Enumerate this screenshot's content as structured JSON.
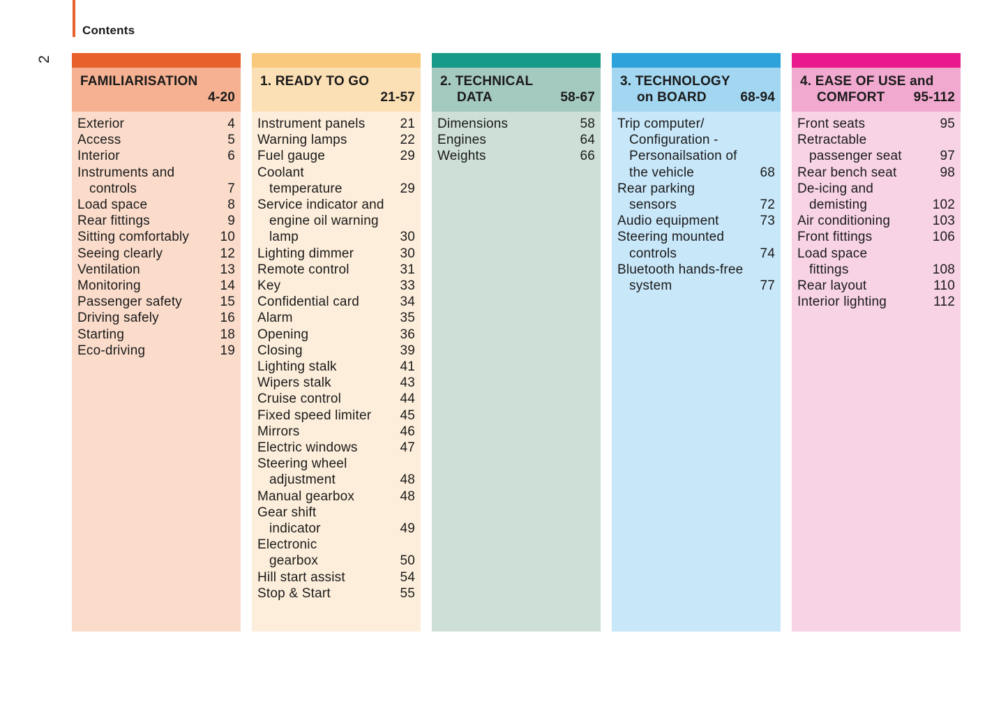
{
  "page_label": "2",
  "contents_title": "Contents",
  "accent_color": "#e8612c",
  "text_color": "#1a1a1a",
  "sections": [
    {
      "title_line1": "FAMILIARISATION",
      "title_line2": "",
      "range": "4-20",
      "colors": {
        "bar": "#e8612c",
        "head": "#f5b191",
        "body": "#fbdccb"
      },
      "entries": [
        {
          "lines": [
            "Exterior"
          ],
          "page": "4"
        },
        {
          "lines": [
            "Access"
          ],
          "page": "5"
        },
        {
          "lines": [
            "Interior"
          ],
          "page": "6"
        },
        {
          "lines": [
            "Instruments and",
            "controls"
          ],
          "page": "7"
        },
        {
          "lines": [
            "Load space"
          ],
          "page": "8"
        },
        {
          "lines": [
            "Rear fittings"
          ],
          "page": "9"
        },
        {
          "lines": [
            "Sitting comfortably"
          ],
          "page": "10"
        },
        {
          "lines": [
            "Seeing clearly"
          ],
          "page": "12"
        },
        {
          "lines": [
            "Ventilation"
          ],
          "page": "13"
        },
        {
          "lines": [
            "Monitoring"
          ],
          "page": "14"
        },
        {
          "lines": [
            "Passenger safety"
          ],
          "page": "15"
        },
        {
          "lines": [
            "Driving safely"
          ],
          "page": "16"
        },
        {
          "lines": [
            "Starting"
          ],
          "page": "18"
        },
        {
          "lines": [
            "Eco-driving"
          ],
          "page": "19"
        }
      ]
    },
    {
      "title_line1": "1. READY TO GO",
      "title_line2": "",
      "range": "21-57",
      "colors": {
        "bar": "#f9c97e",
        "head": "#fce0b5",
        "body": "#fdeedb"
      },
      "entries": [
        {
          "lines": [
            "Instrument panels"
          ],
          "page": "21"
        },
        {
          "lines": [
            "Warning lamps"
          ],
          "page": "22"
        },
        {
          "lines": [
            "Fuel gauge"
          ],
          "page": "29"
        },
        {
          "lines": [
            "Coolant",
            "temperature"
          ],
          "page": "29"
        },
        {
          "lines": [
            "Service indicator and",
            "engine oil warning",
            "lamp"
          ],
          "page": "30"
        },
        {
          "lines": [
            "Lighting dimmer"
          ],
          "page": "30"
        },
        {
          "lines": [
            "Remote control"
          ],
          "page": "31"
        },
        {
          "lines": [
            "Key"
          ],
          "page": "33"
        },
        {
          "lines": [
            "Confidential card"
          ],
          "page": "34"
        },
        {
          "lines": [
            "Alarm"
          ],
          "page": "35"
        },
        {
          "lines": [
            "Opening"
          ],
          "page": "36"
        },
        {
          "lines": [
            "Closing"
          ],
          "page": "39"
        },
        {
          "lines": [
            "Lighting stalk"
          ],
          "page": "41"
        },
        {
          "lines": [
            "Wipers stalk"
          ],
          "page": "43"
        },
        {
          "lines": [
            "Cruise control"
          ],
          "page": "44"
        },
        {
          "lines": [
            "Fixed speed limiter"
          ],
          "page": "45"
        },
        {
          "lines": [
            "Mirrors"
          ],
          "page": "46"
        },
        {
          "lines": [
            "Electric windows"
          ],
          "page": "47"
        },
        {
          "lines": [
            "Steering wheel",
            "adjustment"
          ],
          "page": "48"
        },
        {
          "lines": [
            "Manual gearbox"
          ],
          "page": "48"
        },
        {
          "lines": [
            "Gear shift",
            "indicator"
          ],
          "page": "49"
        },
        {
          "lines": [
            "Electronic",
            "gearbox"
          ],
          "page": "50"
        },
        {
          "lines": [
            "Hill start assist"
          ],
          "page": "54"
        },
        {
          "lines": [
            "Stop & Start"
          ],
          "page": "55"
        }
      ]
    },
    {
      "title_line1": "2. TECHNICAL",
      "title_line2": "DATA",
      "range": "58-67",
      "colors": {
        "bar": "#189a89",
        "head": "#a4c9bf",
        "body": "#cedfd7"
      },
      "entries": [
        {
          "lines": [
            "Dimensions"
          ],
          "page": "58"
        },
        {
          "lines": [
            "Engines"
          ],
          "page": "64"
        },
        {
          "lines": [
            "Weights"
          ],
          "page": "66"
        }
      ]
    },
    {
      "title_line1": "3. TECHNOLOGY",
      "title_line2": "on BOARD",
      "range": "68-94",
      "colors": {
        "bar": "#2ea3db",
        "head": "#a2d6f1",
        "body": "#c8e7f9"
      },
      "entries": [
        {
          "lines": [
            "Trip computer/",
            "Configuration -",
            "Personailsation of",
            "the vehicle"
          ],
          "page": "68"
        },
        {
          "lines": [
            "Rear parking",
            "sensors"
          ],
          "page": "72"
        },
        {
          "lines": [
            "Audio equipment"
          ],
          "page": "73"
        },
        {
          "lines": [
            "Steering mounted",
            "controls"
          ],
          "page": "74"
        },
        {
          "lines": [
            "Bluetooth hands-free",
            "system"
          ],
          "page": "77"
        }
      ]
    },
    {
      "title_line1": "4. EASE OF USE and",
      "title_line2": "COMFORT",
      "range": "95-112",
      "colors": {
        "bar": "#e91a8c",
        "head": "#f1a9cf",
        "body": "#f8d3e6"
      },
      "entries": [
        {
          "lines": [
            "Front seats"
          ],
          "page": "95"
        },
        {
          "lines": [
            "Retractable",
            "passenger seat"
          ],
          "page": "97"
        },
        {
          "lines": [
            "Rear bench seat"
          ],
          "page": "98"
        },
        {
          "lines": [
            "De-icing and",
            "demisting"
          ],
          "page": "102"
        },
        {
          "lines": [
            "Air conditioning"
          ],
          "page": "103"
        },
        {
          "lines": [
            "Front fittings"
          ],
          "page": "106"
        },
        {
          "lines": [
            "Load space",
            "fittings"
          ],
          "page": "108"
        },
        {
          "lines": [
            "Rear layout"
          ],
          "page": "110"
        },
        {
          "lines": [
            "Interior lighting"
          ],
          "page": "112"
        }
      ]
    }
  ]
}
